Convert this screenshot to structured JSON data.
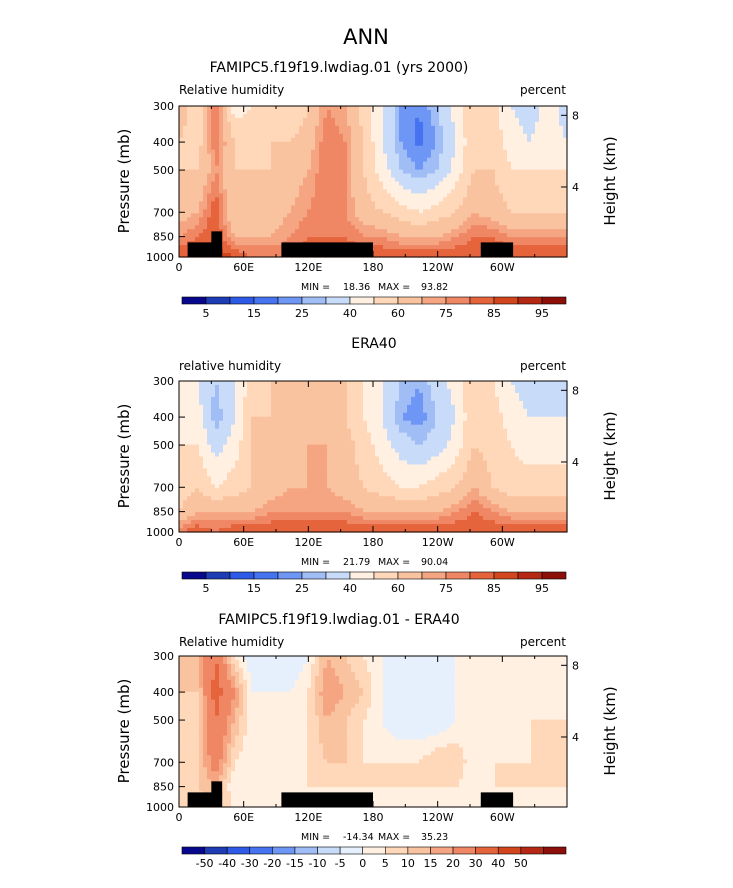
{
  "figure": {
    "supertitle": "ANN"
  },
  "colors": {
    "levels_abs": [
      "#08088c",
      "#1e3cb4",
      "#2d5ae6",
      "#4673f0",
      "#6e96f5",
      "#a0bef5",
      "#c8dcfa",
      "#fff0e1",
      "#ffd7b9",
      "#fac3a0",
      "#f5a582",
      "#f08764",
      "#e6643c",
      "#d2461e",
      "#b42814",
      "#8c0f0a"
    ],
    "levels_diff": [
      "#08088c",
      "#1e3cb4",
      "#2d5ae6",
      "#4673f0",
      "#6e96f5",
      "#a0bef5",
      "#c8dcfa",
      "#e6f0fc",
      "#fff0e1",
      "#ffd7b9",
      "#fac3a0",
      "#f5a582",
      "#f08764",
      "#e6643c",
      "#d2461e",
      "#b42814",
      "#8c0f0a"
    ],
    "topography": "#000000"
  },
  "chart_data": [
    {
      "type": "heatmap",
      "title": "FAMIPC5.f19f19.lwdiag.01 (yrs 2000)",
      "left_label": "Relative humidity",
      "right_label": "percent",
      "ylabel": "Pressure (mb)",
      "y2label": "Height (km)",
      "x_ticks": [
        "0",
        "60E",
        "120E",
        "180",
        "120W",
        "60W"
      ],
      "y_ticks": [
        "300",
        "400",
        "500",
        "700",
        "850",
        "1000"
      ],
      "y2_ticks": [
        "8",
        "4"
      ],
      "ylim": [
        1000,
        300
      ],
      "xlim": [
        0,
        360
      ],
      "min_label": "MIN =",
      "min_value": "18.36",
      "max_label": "MAX =",
      "max_value": "93.82",
      "colorbar_labels": [
        "5",
        "15",
        "25",
        "40",
        "60",
        "75",
        "85",
        "95"
      ],
      "values": [
        [
          65,
          55,
          80,
          45,
          50,
          55,
          50,
          60,
          75,
          70,
          55,
          40,
          25,
          20,
          30,
          45,
          60,
          55,
          40,
          35,
          45,
          35
        ],
        [
          60,
          55,
          80,
          60,
          55,
          60,
          60,
          65,
          80,
          75,
          60,
          40,
          25,
          18,
          25,
          40,
          60,
          55,
          45,
          40,
          45,
          40
        ],
        [
          60,
          60,
          75,
          60,
          60,
          60,
          65,
          70,
          80,
          75,
          60,
          45,
          30,
          25,
          30,
          45,
          60,
          60,
          50,
          50,
          50,
          50
        ],
        [
          65,
          70,
          85,
          60,
          60,
          65,
          70,
          75,
          80,
          75,
          65,
          60,
          55,
          50,
          55,
          60,
          70,
          65,
          60,
          60,
          60,
          60
        ],
        [
          75,
          80,
          85,
          70,
          70,
          70,
          75,
          80,
          80,
          80,
          75,
          75,
          70,
          70,
          70,
          75,
          80,
          80,
          75,
          75,
          75,
          75
        ],
        [
          85,
          85,
          90,
          85,
          80,
          80,
          80,
          85,
          85,
          85,
          85,
          85,
          85,
          85,
          85,
          85,
          85,
          85,
          85,
          85,
          85,
          85
        ]
      ],
      "topography": [
        {
          "x0": 8,
          "x1": 40,
          "p": 890
        },
        {
          "x0": 30,
          "x1": 40,
          "p": 815
        },
        {
          "x0": 95,
          "x1": 180,
          "p": 890
        },
        {
          "x0": 280,
          "x1": 310,
          "p": 890
        }
      ]
    },
    {
      "type": "heatmap",
      "title": "ERA40",
      "left_label": "relative humidity",
      "right_label": "percent",
      "ylabel": "Pressure (mb)",
      "y2label": "Height (km)",
      "x_ticks": [
        "0",
        "60E",
        "120E",
        "180",
        "120W",
        "60W"
      ],
      "y_ticks": [
        "300",
        "400",
        "500",
        "700",
        "850",
        "1000"
      ],
      "y2_ticks": [
        "8",
        "4"
      ],
      "ylim": [
        1000,
        300
      ],
      "xlim": [
        0,
        360
      ],
      "min_label": "MIN =",
      "min_value": "21.79",
      "max_label": "MAX =",
      "max_value": "90.04",
      "colorbar_labels": [
        "5",
        "15",
        "25",
        "40",
        "60",
        "75",
        "85",
        "95"
      ],
      "values": [
        [
          45,
          40,
          30,
          40,
          55,
          60,
          60,
          65,
          65,
          60,
          50,
          40,
          30,
          25,
          35,
          45,
          60,
          50,
          40,
          35,
          40,
          35
        ],
        [
          45,
          45,
          25,
          40,
          60,
          60,
          60,
          65,
          65,
          60,
          50,
          40,
          25,
          22,
          30,
          40,
          60,
          55,
          45,
          40,
          40,
          40
        ],
        [
          50,
          50,
          35,
          45,
          60,
          60,
          65,
          70,
          70,
          65,
          55,
          45,
          35,
          30,
          35,
          45,
          60,
          55,
          50,
          45,
          45,
          45
        ],
        [
          55,
          60,
          50,
          55,
          60,
          65,
          70,
          70,
          70,
          65,
          60,
          55,
          50,
          50,
          55,
          60,
          70,
          60,
          55,
          55,
          55,
          55
        ],
        [
          60,
          70,
          70,
          70,
          70,
          75,
          75,
          75,
          75,
          75,
          70,
          70,
          70,
          70,
          70,
          75,
          80,
          75,
          70,
          70,
          70,
          70
        ],
        [
          80,
          85,
          80,
          85,
          85,
          85,
          85,
          85,
          85,
          85,
          85,
          85,
          85,
          85,
          85,
          85,
          85,
          85,
          85,
          85,
          85,
          85
        ]
      ],
      "topography": []
    },
    {
      "type": "heatmap",
      "title": "FAMIPC5.f19f19.lwdiag.01 - ERA40",
      "left_label": "Relative humidity",
      "right_label": "percent",
      "ylabel": "Pressure (mb)",
      "y2label": "Height (km)",
      "x_ticks": [
        "0",
        "60E",
        "120E",
        "180",
        "120W",
        "60W"
      ],
      "y_ticks": [
        "300",
        "400",
        "500",
        "700",
        "850",
        "1000"
      ],
      "y2_ticks": [
        "8",
        "4"
      ],
      "ylim": [
        1000,
        300
      ],
      "xlim": [
        0,
        360
      ],
      "min_label": "MIN =",
      "min_value": "-14.34",
      "max_label": "MAX =",
      "max_value": "35.23",
      "colorbar_labels": [
        "-50",
        "-40",
        "-30",
        "-20",
        "-15",
        "-10",
        "-5",
        "0",
        "5",
        "10",
        "15",
        "20",
        "30",
        "40",
        "50"
      ],
      "values": [
        [
          10,
          15,
          30,
          5,
          -5,
          -5,
          -5,
          0,
          15,
          10,
          5,
          0,
          -5,
          -5,
          -5,
          0,
          0,
          5,
          0,
          0,
          5,
          0
        ],
        [
          10,
          10,
          35,
          20,
          0,
          0,
          0,
          5,
          20,
          15,
          10,
          0,
          0,
          -5,
          -5,
          0,
          0,
          0,
          0,
          0,
          5,
          0
        ],
        [
          5,
          10,
          30,
          15,
          0,
          0,
          0,
          5,
          15,
          10,
          5,
          0,
          -5,
          -5,
          -5,
          0,
          0,
          5,
          0,
          5,
          5,
          5
        ],
        [
          5,
          10,
          25,
          5,
          0,
          0,
          0,
          5,
          10,
          10,
          5,
          5,
          5,
          5,
          10,
          10,
          0,
          5,
          5,
          5,
          5,
          5
        ],
        [
          10,
          10,
          15,
          0,
          0,
          0,
          0,
          5,
          5,
          5,
          5,
          5,
          5,
          5,
          5,
          5,
          0,
          5,
          5,
          5,
          5,
          5
        ],
        [
          5,
          5,
          10,
          5,
          0,
          0,
          0,
          0,
          0,
          0,
          0,
          0,
          0,
          0,
          0,
          0,
          0,
          0,
          0,
          0,
          0,
          0
        ]
      ],
      "topography": [
        {
          "x0": 8,
          "x1": 40,
          "p": 890
        },
        {
          "x0": 30,
          "x1": 40,
          "p": 815
        },
        {
          "x0": 95,
          "x1": 180,
          "p": 890
        },
        {
          "x0": 280,
          "x1": 310,
          "p": 890
        }
      ]
    }
  ]
}
